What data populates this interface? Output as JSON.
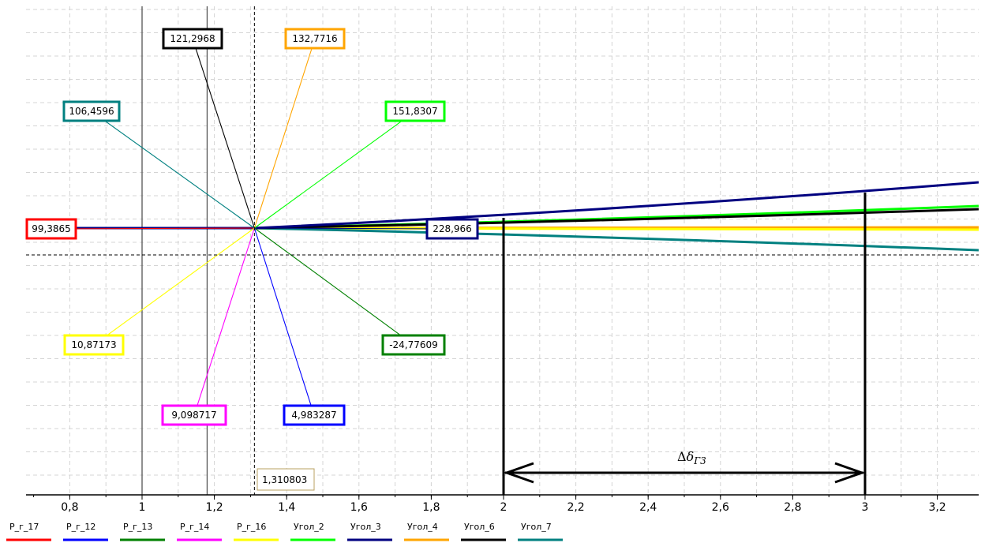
{
  "chart_data": {
    "type": "line",
    "xlim": [
      0.67,
      3.32
    ],
    "x_ticks": [
      0.8,
      1,
      1.2,
      1.4,
      1.6,
      1.8,
      2,
      2.2,
      2.4,
      2.6,
      2.8,
      3,
      3.2
    ],
    "x_tick_labels": [
      "0,8",
      "1",
      "1,2",
      "1,4",
      "1,6",
      "1,8",
      "2",
      "2,2",
      "2,4",
      "2,6",
      "2,8",
      "3",
      "3,2"
    ],
    "grid": true,
    "legend_position": "bottom-left",
    "vertical_lines": [
      1,
      1.18
    ],
    "cursor": {
      "x": 1.310803,
      "label": "1,310803"
    },
    "series": [
      {
        "name": "P_г_17",
        "color": "#ff0000",
        "cursor_value": "99,3865",
        "x": [
          0.67,
          3.32
        ],
        "trend": [
          0,
          0
        ]
      },
      {
        "name": "P_г_12",
        "color": "#0000ff",
        "cursor_value": "4,983287",
        "x": [
          0.67,
          3.32
        ],
        "trend": [
          0,
          0
        ]
      },
      {
        "name": "P_г_13",
        "color": "#008000",
        "cursor_value": "-24,77609",
        "x": [
          0.67,
          3.32
        ],
        "trend": [
          0,
          0
        ]
      },
      {
        "name": "P_г_14",
        "color": "#ff00ff",
        "cursor_value": "9,098717",
        "x": [
          0.67,
          3.32
        ],
        "trend": [
          0,
          0
        ]
      },
      {
        "name": "P_г_16",
        "color": "#ffff00",
        "cursor_value": "10,87173",
        "x": [
          0.67,
          3.32
        ],
        "trend": [
          0,
          0
        ]
      },
      {
        "name": "Угол_2",
        "color": "#00ff00",
        "cursor_value": "151,8307",
        "x": [
          0.67,
          3.32
        ],
        "trend": [
          0,
          0
        ]
      },
      {
        "name": "Угол_3",
        "color": "#000080",
        "cursor_value": "228,966",
        "x": [
          0.67,
          3.32
        ],
        "trend": [
          0,
          0
        ]
      },
      {
        "name": "Угол_4",
        "color": "#ffa500",
        "cursor_value": "132,7716",
        "x": [
          0.67,
          3.32
        ],
        "trend": [
          0,
          0
        ]
      },
      {
        "name": "Угол_6",
        "color": "#000000",
        "cursor_value": "121,2968",
        "x": [
          0.67,
          3.32
        ],
        "trend": [
          0,
          0
        ]
      },
      {
        "name": "Угол_7",
        "color": "#008080",
        "cursor_value": "106,4596",
        "x": [
          0.67,
          3.32
        ],
        "trend": [
          0,
          0
        ]
      }
    ],
    "annotation": {
      "x_from": 2,
      "x_to": 3,
      "label_prefix": "Δ",
      "label_symbol": "δ",
      "label_subscript": "Г3"
    }
  }
}
